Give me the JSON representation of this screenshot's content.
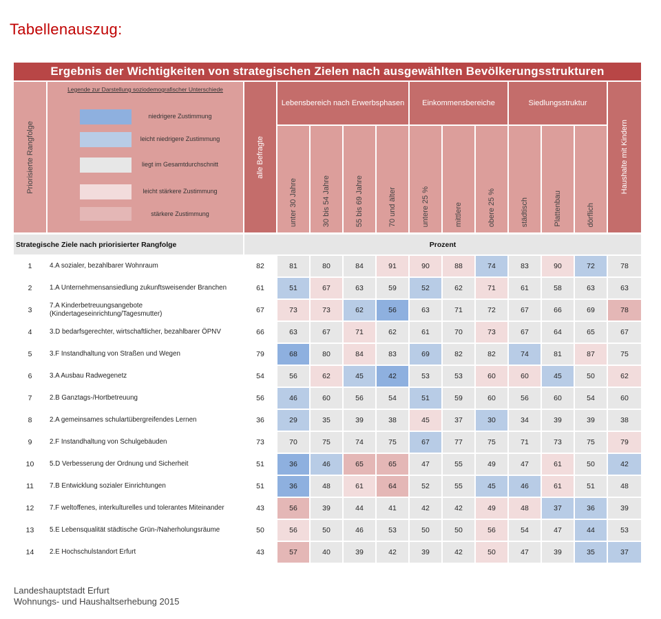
{
  "page_title": "Tabellenauszug:",
  "table": {
    "banner": "Ergebnis der Wichtigkeiten von strategischen Zielen nach ausgewählten Bevölkerungsstrukturen",
    "rank_header": "Priorisierte Rangfolge",
    "legend": {
      "title": "Legende zur Darstellung soziodemografischer Unterschiede",
      "items": [
        {
          "label": "niedrigere Zustimmung",
          "color": "#8eb0df"
        },
        {
          "label": "leicht niedrigere Zustimmung",
          "color": "#b8cce6"
        },
        {
          "label": "liegt im Gesamtdurchschnitt",
          "color": "#e7e7e7"
        },
        {
          "label": "leicht stärkere Zustimmung",
          "color": "#f2dcdc"
        },
        {
          "label": "stärkere Zustimmung",
          "color": "#e4b7b6"
        }
      ]
    },
    "groups": [
      {
        "label": "Lebensbereich nach Erwerbsphasen"
      },
      {
        "label": "Einkommensbereiche"
      },
      {
        "label": "Siedlungsstruktur"
      }
    ],
    "columns": [
      "alle Befragte",
      "unter 30 Jahre",
      "30 bis 54 Jahre",
      "55 bis 69 Jahre",
      "70 und älter",
      "untere 25 %",
      "mittlere",
      "obere 25 %",
      "städtisch",
      "Plattenbau",
      "dörflich",
      "Haushalte mit Kindern"
    ],
    "subheader_left": "Strategische Ziele nach priorisierter Rangfolge",
    "subheader_right": "Prozent",
    "rows": [
      {
        "rank": "1",
        "goal": "4.A sozialer, bezahlbarer Wohnraum",
        "values": [
          "82",
          "81",
          "80",
          "84",
          "91",
          "90",
          "88",
          "74",
          "83",
          "90",
          "72",
          "78"
        ],
        "shades": [
          "w",
          "a",
          "a",
          "a",
          "h",
          "h",
          "h",
          "l",
          "a",
          "h",
          "l",
          "a"
        ]
      },
      {
        "rank": "2",
        "goal": "1.A Unternehmensansiedlung zukunftsweisender Branchen",
        "values": [
          "61",
          "51",
          "67",
          "63",
          "59",
          "52",
          "62",
          "71",
          "61",
          "58",
          "63",
          "63"
        ],
        "shades": [
          "w",
          "l",
          "h",
          "a",
          "a",
          "l",
          "a",
          "h",
          "a",
          "a",
          "a",
          "a"
        ]
      },
      {
        "rank": "3",
        "goal": "7.A Kinderbetreuungsangebote (Kindertageseinrichtung/Tagesmutter)",
        "values": [
          "67",
          "73",
          "73",
          "62",
          "56",
          "63",
          "71",
          "72",
          "67",
          "66",
          "69",
          "78"
        ],
        "shades": [
          "w",
          "h",
          "h",
          "l",
          "s",
          "a",
          "a",
          "a",
          "a",
          "a",
          "a",
          "H"
        ]
      },
      {
        "rank": "4",
        "goal": "3.D bedarfsgerechter, wirtschaftlicher, bezahlbarer ÖPNV",
        "values": [
          "66",
          "63",
          "67",
          "71",
          "62",
          "61",
          "70",
          "73",
          "67",
          "64",
          "65",
          "67"
        ],
        "shades": [
          "w",
          "a",
          "a",
          "h",
          "a",
          "a",
          "a",
          "h",
          "a",
          "a",
          "a",
          "a"
        ]
      },
      {
        "rank": "5",
        "goal": "3.F Instandhaltung von Straßen und Wegen",
        "values": [
          "79",
          "68",
          "80",
          "84",
          "83",
          "69",
          "82",
          "82",
          "74",
          "81",
          "87",
          "75"
        ],
        "shades": [
          "w",
          "s",
          "a",
          "h",
          "a",
          "l",
          "a",
          "a",
          "l",
          "a",
          "h",
          "a"
        ]
      },
      {
        "rank": "6",
        "goal": "3.A Ausbau Radwegenetz",
        "values": [
          "54",
          "56",
          "62",
          "45",
          "42",
          "53",
          "53",
          "60",
          "60",
          "45",
          "50",
          "62"
        ],
        "shades": [
          "w",
          "a",
          "h",
          "l",
          "s",
          "a",
          "a",
          "h",
          "h",
          "l",
          "a",
          "h"
        ]
      },
      {
        "rank": "7",
        "goal": "2.B Ganztags-/Hortbetreuung",
        "values": [
          "56",
          "46",
          "60",
          "56",
          "54",
          "51",
          "59",
          "60",
          "56",
          "60",
          "54",
          "60"
        ],
        "shades": [
          "w",
          "l",
          "a",
          "a",
          "a",
          "l",
          "a",
          "a",
          "a",
          "a",
          "a",
          "a"
        ]
      },
      {
        "rank": "8",
        "goal": "2.A gemeinsames schulartübergreifendes Lernen",
        "values": [
          "36",
          "29",
          "35",
          "39",
          "38",
          "45",
          "37",
          "30",
          "34",
          "39",
          "39",
          "38"
        ],
        "shades": [
          "w",
          "l",
          "a",
          "a",
          "a",
          "h",
          "a",
          "l",
          "a",
          "a",
          "a",
          "a"
        ]
      },
      {
        "rank": "9",
        "goal": "2.F Instandhaltung von Schulgebäuden",
        "values": [
          "73",
          "70",
          "75",
          "74",
          "75",
          "67",
          "77",
          "75",
          "71",
          "73",
          "75",
          "79"
        ],
        "shades": [
          "w",
          "a",
          "a",
          "a",
          "a",
          "l",
          "a",
          "a",
          "a",
          "a",
          "a",
          "h"
        ]
      },
      {
        "rank": "10",
        "goal": "5.D Verbesserung der Ordnung und Sicherheit",
        "values": [
          "51",
          "36",
          "46",
          "65",
          "65",
          "47",
          "55",
          "49",
          "47",
          "61",
          "50",
          "42"
        ],
        "shades": [
          "w",
          "s",
          "l",
          "H",
          "H",
          "a",
          "a",
          "a",
          "a",
          "h",
          "a",
          "l"
        ]
      },
      {
        "rank": "11",
        "goal": "7.B Entwicklung sozialer Einrichtungen",
        "values": [
          "51",
          "36",
          "48",
          "61",
          "64",
          "52",
          "55",
          "45",
          "46",
          "61",
          "51",
          "48"
        ],
        "shades": [
          "w",
          "s",
          "a",
          "h",
          "H",
          "a",
          "a",
          "l",
          "l",
          "h",
          "a",
          "a"
        ]
      },
      {
        "rank": "12",
        "goal": "7.F weltoffenes, interkulturelles und tolerantes Miteinander",
        "values": [
          "43",
          "56",
          "39",
          "44",
          "41",
          "42",
          "42",
          "49",
          "48",
          "37",
          "36",
          "39"
        ],
        "shades": [
          "w",
          "H",
          "a",
          "a",
          "a",
          "a",
          "a",
          "h",
          "h",
          "l",
          "l",
          "a"
        ]
      },
      {
        "rank": "13",
        "goal": "5.E Lebensqualität städtische Grün-/Naherholungsräume",
        "values": [
          "50",
          "56",
          "50",
          "46",
          "53",
          "50",
          "50",
          "56",
          "54",
          "47",
          "44",
          "53"
        ],
        "shades": [
          "w",
          "h",
          "a",
          "a",
          "a",
          "a",
          "a",
          "h",
          "a",
          "a",
          "l",
          "a"
        ]
      },
      {
        "rank": "14",
        "goal": "2.E Hochschulstandort Erfurt",
        "values": [
          "43",
          "57",
          "40",
          "39",
          "42",
          "39",
          "42",
          "50",
          "47",
          "39",
          "35",
          "37"
        ],
        "shades": [
          "w",
          "H",
          "a",
          "a",
          "a",
          "a",
          "a",
          "h",
          "a",
          "a",
          "l",
          "l"
        ]
      }
    ]
  },
  "footer": {
    "line1": "Landeshauptstadt  Erfurt",
    "line2": "Wohnungs- und Haushaltserhebung  2015"
  }
}
